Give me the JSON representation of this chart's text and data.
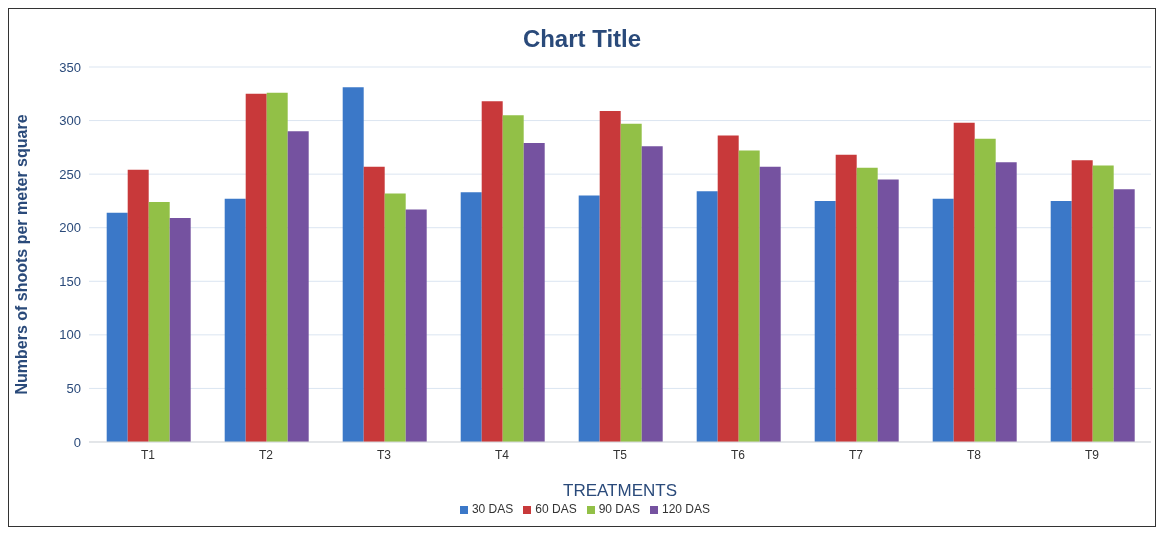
{
  "chart_data": {
    "type": "bar",
    "title": "Chart Title",
    "xlabel": "TREATMENTS",
    "ylabel": "Numbers of shoots per meter square",
    "categories": [
      "T1",
      "T2",
      "T3",
      "T4",
      "T5",
      "T6",
      "T7",
      "T8",
      "T9"
    ],
    "series": [
      {
        "name": "30 DAS",
        "color": "#3b78c8",
        "values": [
          214,
          227,
          331,
          233,
          230,
          234,
          225,
          227,
          225
        ]
      },
      {
        "name": "60 DAS",
        "color": "#c8393a",
        "values": [
          254,
          325,
          257,
          318,
          309,
          286,
          268,
          298,
          263
        ]
      },
      {
        "name": "90 DAS",
        "color": "#92c047",
        "values": [
          224,
          326,
          232,
          305,
          297,
          272,
          256,
          283,
          258
        ]
      },
      {
        "name": "120 DAS",
        "color": "#7552a0",
        "values": [
          209,
          290,
          217,
          279,
          276,
          257,
          245,
          261,
          236
        ]
      }
    ],
    "ylim": [
      0,
      350
    ],
    "yticks": [
      0,
      50,
      100,
      150,
      200,
      250,
      300,
      350
    ],
    "grid": "y",
    "legend": "bottom"
  }
}
